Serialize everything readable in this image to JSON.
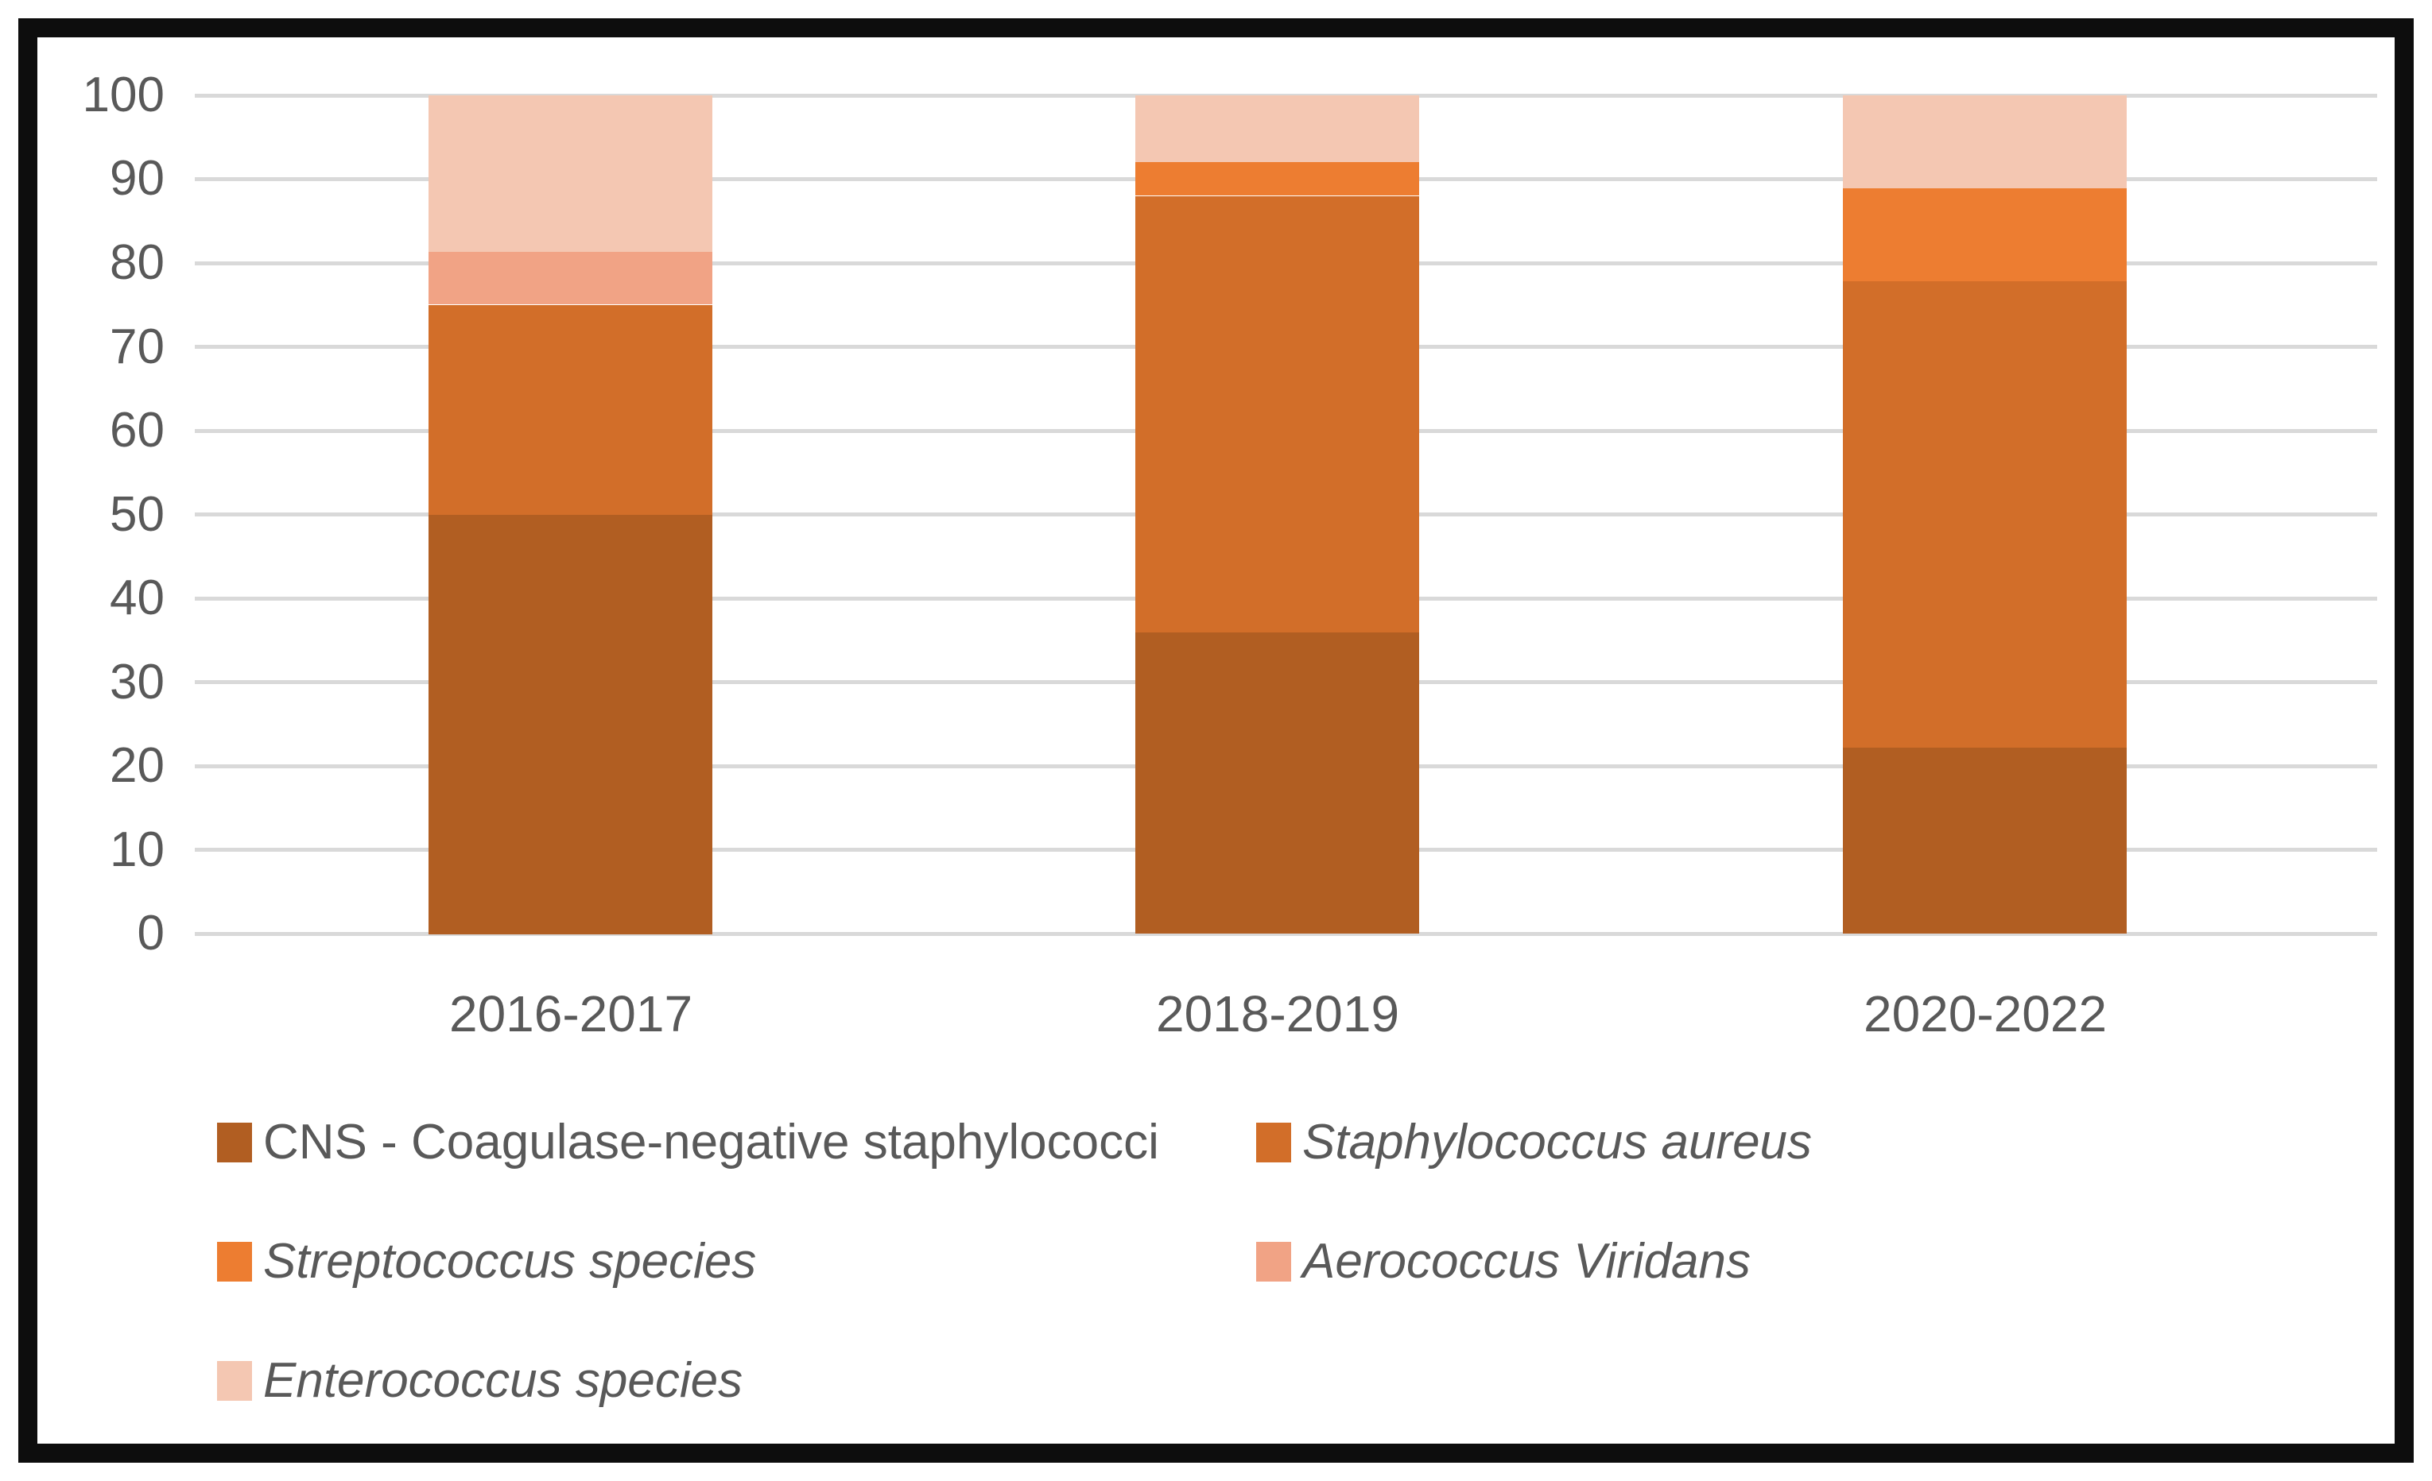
{
  "chart_data": {
    "type": "bar",
    "stacked": true,
    "title": "",
    "xlabel": "",
    "ylabel": "",
    "categories": [
      "2016-2017",
      "2018-2019",
      "2020-2022"
    ],
    "series": [
      {
        "name": "CNS - Coagulase-negative staphylococci",
        "italic": false,
        "color": "#B15E22",
        "values": [
          50,
          36,
          22.2
        ]
      },
      {
        "name": "Staphylococcus aureus",
        "italic": true,
        "color": "#D26E29",
        "values": [
          25,
          52,
          55.6
        ]
      },
      {
        "name": "Streptococcus species",
        "italic": true,
        "color": "#ED7D31",
        "values": [
          0,
          4,
          11.1
        ]
      },
      {
        "name": "Aerococcus Viridans",
        "italic": true,
        "color": "#F1A385",
        "values": [
          6.3,
          0,
          0
        ]
      },
      {
        "name": "Enterococcus species",
        "italic": true,
        "color": "#F4C7B2",
        "values": [
          18.7,
          8,
          11.1
        ]
      }
    ],
    "ylim": [
      0,
      100
    ],
    "yticks": [
      0,
      10,
      20,
      30,
      40,
      50,
      60,
      70,
      80,
      90,
      100
    ],
    "grid": true,
    "legend_position": "bottom, two columns, three rows"
  },
  "styles": {
    "background": "#FFFFFF",
    "frame_border_color": "#0D0D0D",
    "gridline_color": "#D9D9D9",
    "text_color": "#595959"
  }
}
